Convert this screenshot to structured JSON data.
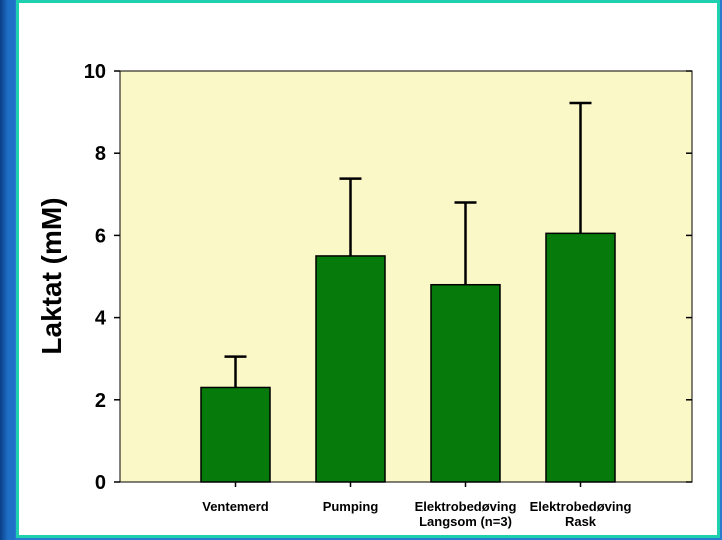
{
  "chart_data": {
    "type": "bar",
    "title": "",
    "xlabel": "",
    "ylabel": "Laktat (mM)",
    "ylim": [
      0,
      10
    ],
    "yticks": [
      0,
      2,
      4,
      6,
      8,
      10
    ],
    "grid": false,
    "categories": [
      [
        "Ventemerd"
      ],
      [
        "Pumping"
      ],
      [
        "Elektrobedøving",
        "Langsom (n=3)"
      ],
      [
        "Elektrobedøving",
        "Rask"
      ]
    ],
    "values": [
      2.3,
      5.5,
      4.8,
      6.05
    ],
    "error_upper": [
      3.05,
      7.38,
      6.8,
      9.22
    ],
    "colors": {
      "bar": "#067a0b",
      "plot_background": "#fbf8c8",
      "panel_border": "#1fd0b0",
      "slide_background": "#1e6fc6"
    }
  }
}
